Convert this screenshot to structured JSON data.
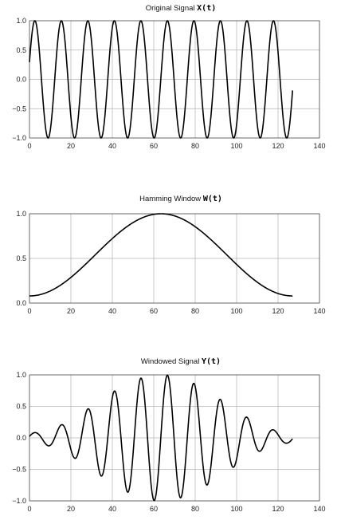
{
  "chart_data": [
    {
      "type": "line",
      "title": "Original Signal",
      "title_symbol": "X(t)",
      "xlim": [
        0,
        140
      ],
      "ylim": [
        -1.0,
        1.0
      ],
      "xticks": [
        0,
        20,
        40,
        60,
        80,
        100,
        120,
        140
      ],
      "yticks": [
        1.0,
        0.5,
        0.0,
        -0.5,
        -1.0
      ],
      "ytick_labels": [
        "1.0",
        "0.5",
        "0.0",
        "−0.5",
        "−1.0"
      ],
      "grid": true,
      "n_points": 128,
      "signal": "sine",
      "period": 12.8,
      "phase_offset_rad": 0.3,
      "x_end": 127,
      "line_color": "#000000"
    },
    {
      "type": "line",
      "title": "Hamming Window",
      "title_symbol": "W(t)",
      "xlim": [
        0,
        140
      ],
      "ylim": [
        0.0,
        1.0
      ],
      "xticks": [
        0,
        20,
        40,
        60,
        80,
        100,
        120,
        140
      ],
      "yticks": [
        1.0,
        0.5,
        0.0
      ],
      "ytick_labels": [
        "1.0",
        "0.5",
        "0.0"
      ],
      "grid": true,
      "n_points": 128,
      "signal": "hamming",
      "x_end": 127,
      "line_color": "#000000"
    },
    {
      "type": "line",
      "title": "Windowed Signal",
      "title_symbol": "Y(t)",
      "xlim": [
        0,
        140
      ],
      "ylim": [
        -1.0,
        1.0
      ],
      "xticks": [
        0,
        20,
        40,
        60,
        80,
        100,
        120,
        140
      ],
      "yticks": [
        1.0,
        0.5,
        0.0,
        -0.5,
        -1.0
      ],
      "ytick_labels": [
        "1.0",
        "0.5",
        "0.0",
        "−0.5",
        "−1.0"
      ],
      "grid": true,
      "n_points": 128,
      "signal": "windowed",
      "period": 12.8,
      "phase_offset_rad": 0.3,
      "x_end": 127,
      "line_color": "#000000"
    }
  ],
  "colors": {
    "grid": "#b4b4b4",
    "frame": "#444444",
    "line": "#000000"
  }
}
